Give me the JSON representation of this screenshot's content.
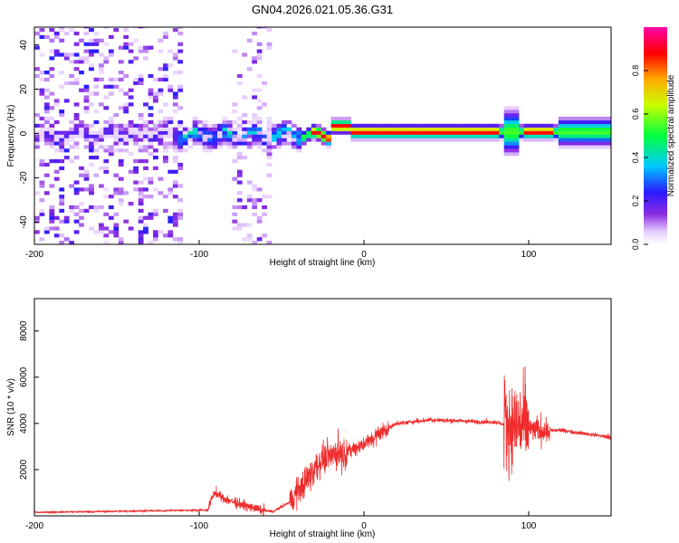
{
  "title": "GN04.2026.021.05.36.G31",
  "colors": {
    "snr_line": "#ee2c2c",
    "frame": "#000000",
    "background": "#ffffff"
  },
  "chart_data": [
    {
      "type": "heatmap",
      "xlabel": "Height of straight line (km)",
      "ylabel": "Frequency (Hz)",
      "xlim": [
        -200,
        150
      ],
      "ylim": [
        -50,
        48
      ],
      "xticks": [
        -200,
        -100,
        0,
        100
      ],
      "yticks": [
        -40,
        -20,
        0,
        20,
        40
      ],
      "grid": false,
      "colorbar": {
        "label": "Normalized spectral amplitude",
        "range": [
          0,
          1
        ],
        "ticks": [
          "0.0",
          "0.2",
          "0.4",
          "0.6",
          "0.8"
        ],
        "colormap": "rainbow (white-violet-purple-blue-cyan-green-yellow-red-magenta)",
        "position": "right"
      },
      "structure": {
        "scattered_noise_x": [
          -200,
          -110
        ],
        "gap_x": [
          -110,
          -82
        ],
        "second_noise_band_x": [
          -82,
          -57
        ],
        "central_ridge_frequency_hz": 0,
        "coherent_ridge_start_x": -40,
        "ridge_peak_amplitude": 0.9
      }
    },
    {
      "type": "line",
      "xlabel": "Height of straight line (km)",
      "ylabel": "SNR (10 * v/v)",
      "xlim": [
        -200,
        150
      ],
      "ylim": [
        0,
        9400
      ],
      "xticks": [
        -200,
        -100,
        0,
        100
      ],
      "yticks": [
        2000,
        4000,
        6000,
        8000
      ],
      "grid": false,
      "series": [
        {
          "color": "#ee2c2c",
          "envelope_x": [
            -200,
            -95,
            -91,
            -85,
            -75,
            -62,
            -55,
            -45,
            -38,
            -30,
            -25,
            -20,
            -12,
            0,
            10,
            20,
            40,
            60,
            80,
            88,
            93,
            96,
            100,
            105,
            112,
            120,
            150
          ],
          "envelope_y": [
            150,
            250,
            1000,
            750,
            500,
            250,
            180,
            600,
            1300,
            2000,
            2500,
            2700,
            2700,
            3100,
            3600,
            4000,
            4150,
            4100,
            4050,
            3900,
            4000,
            4000,
            3800,
            3700,
            3700,
            3700,
            3400
          ]
        }
      ]
    }
  ]
}
